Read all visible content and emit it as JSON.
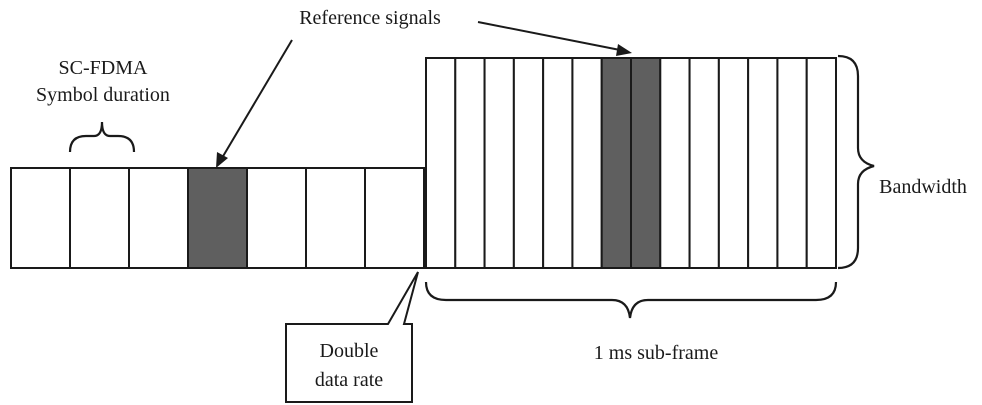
{
  "labels": {
    "reference_signals": "Reference signals",
    "symbol_duration_line1": "SC-FDMA",
    "symbol_duration_line2": "Symbol duration",
    "bandwidth": "Bandwidth",
    "subframe": "1 ms sub-frame",
    "double_rate_line1": "Double",
    "double_rate_line2": "data rate"
  },
  "left_frame": {
    "symbol_count": 7,
    "reference_symbol_index": 3
  },
  "right_frame": {
    "symbol_count": 14,
    "reference_symbol_indices": [
      6,
      7
    ]
  },
  "colors": {
    "stroke": "#1a1a1a",
    "data_fill": "#ffffff",
    "reference_fill": "#5f5f5f"
  }
}
